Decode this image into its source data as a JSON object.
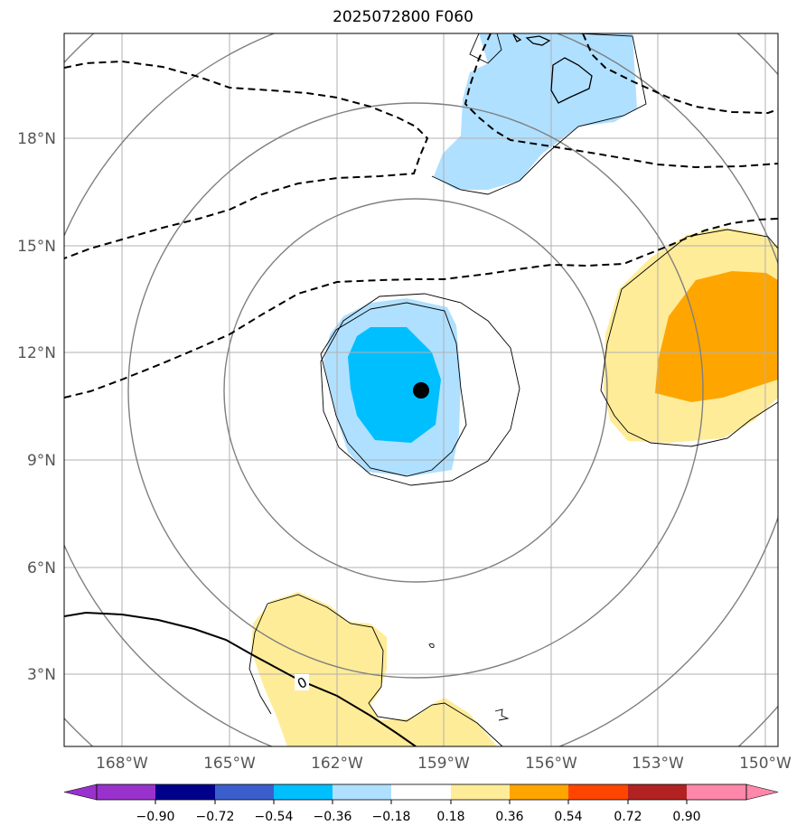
{
  "title": "2025072800 F060",
  "lat_labels": [
    "18°N",
    "15°N",
    "12°N",
    "9°N",
    "6°N",
    "3°N"
  ],
  "lon_labels": [
    "168°W",
    "165°W",
    "162°W",
    "159°W",
    "156°W",
    "153°W",
    "150°W"
  ],
  "colorbar": {
    "colors": [
      "#9932cc",
      "#00008b",
      "#3a5fcd",
      "#00bfff",
      "#b0e0ff",
      "#ffffff",
      "#ffec99",
      "#ffa500",
      "#ff4500",
      "#b22222",
      "#ff88aa"
    ],
    "tick_labels": [
      "−0.90",
      "−0.72",
      "−0.54",
      "−0.36",
      "−0.18",
      "0.18",
      "0.36",
      "0.54",
      "0.72",
      "0.90"
    ]
  },
  "contour_label": "0",
  "center_marker": "storm-center-dot"
}
